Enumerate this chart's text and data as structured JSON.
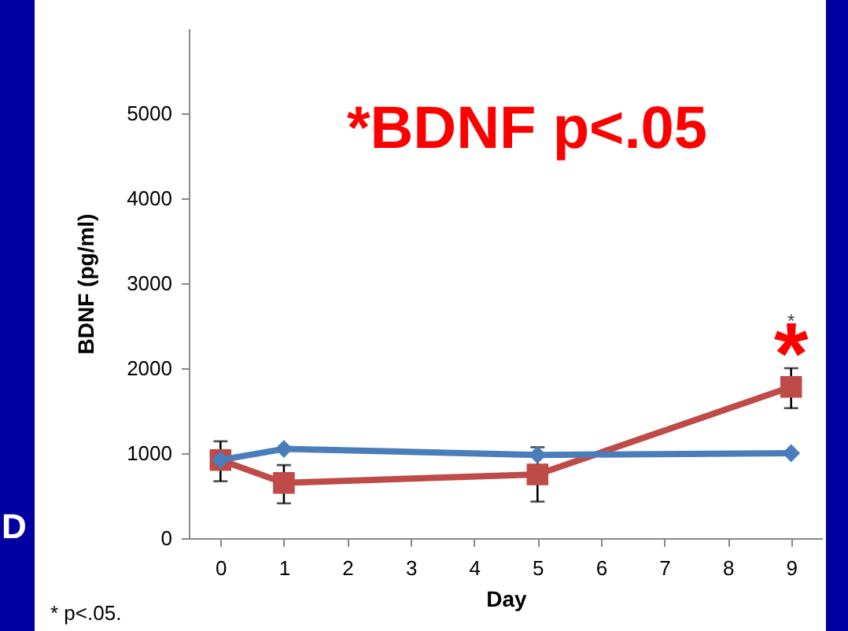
{
  "chart_data": {
    "type": "line",
    "title": "*BDNF p<.05",
    "xlabel": "Day",
    "ylabel": "BDNF (pg/ml)",
    "x": [
      0,
      1,
      5,
      9
    ],
    "series": [
      {
        "color": "#4a7ebb",
        "marker": "diamond",
        "values": [
          920,
          1050,
          980,
          1000
        ]
      },
      {
        "color": "#be4b48",
        "marker": "square",
        "values": [
          920,
          650,
          750,
          1780
        ],
        "errors": [
          [
            670,
            1140
          ],
          [
            410,
            860
          ],
          [
            430,
            1070
          ],
          [
            1530,
            2000
          ]
        ]
      }
    ],
    "xlim": [
      -0.5,
      9.5
    ],
    "xticks": [
      0,
      1,
      2,
      3,
      4,
      5,
      6,
      7,
      8,
      9
    ],
    "ylim": [
      0,
      6000
    ],
    "yticks": [
      0,
      1000,
      2000,
      3000,
      4000,
      5000
    ],
    "grid": false,
    "line_style": "solid",
    "annotations": [
      "D",
      "* p<.05.",
      "*",
      "*"
    ]
  }
}
